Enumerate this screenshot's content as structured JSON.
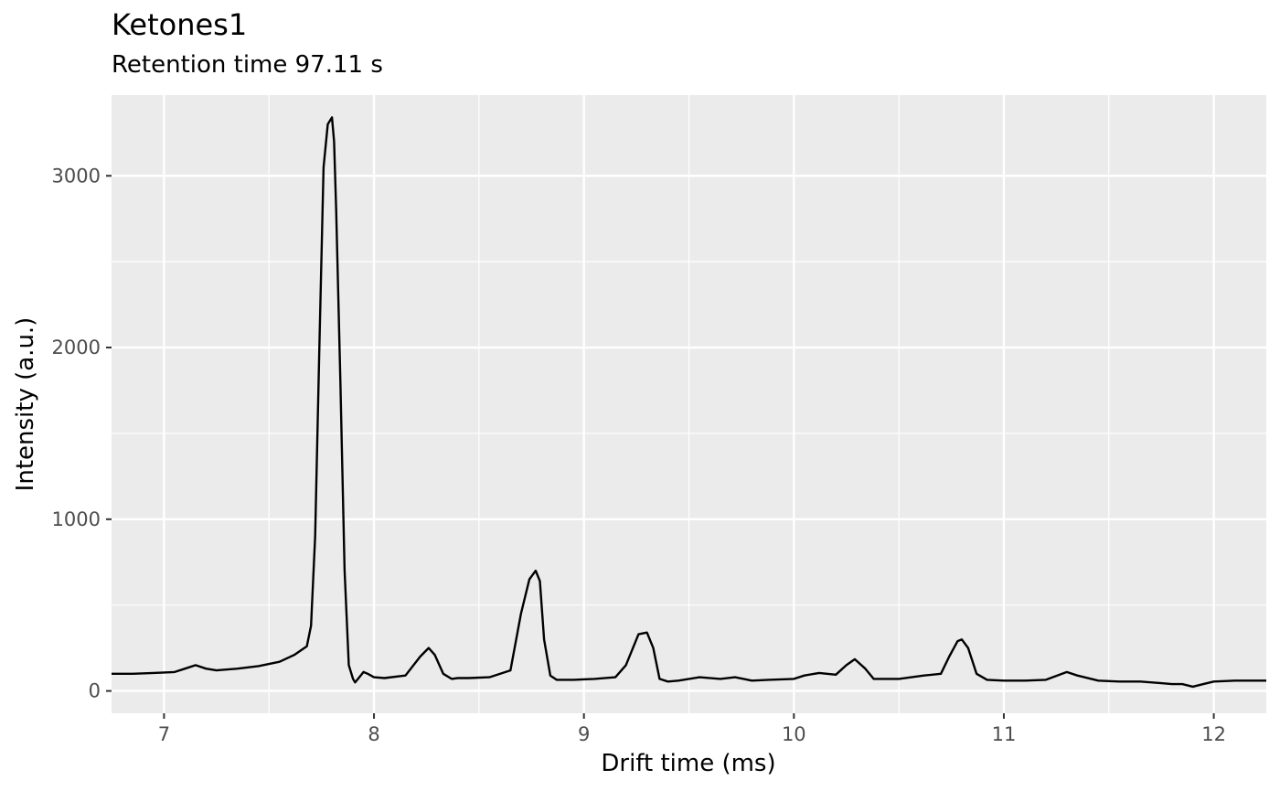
{
  "chart_data": {
    "type": "line",
    "title": "Ketones1",
    "subtitle": "Retention time 97.11 s",
    "xlabel": "Drift time (ms)",
    "ylabel": "Intensity (a.u.)",
    "xlim": [
      6.75,
      12.25
    ],
    "ylim": [
      -130,
      3470
    ],
    "xticks": [
      7,
      8,
      9,
      10,
      11,
      12
    ],
    "yticks": [
      0,
      1000,
      2000,
      3000
    ],
    "grid": true,
    "line_color": "#000000",
    "panel_background": "#EBEBEB",
    "series": [
      {
        "x": [
          6.75,
          6.85,
          6.95,
          7.05,
          7.1,
          7.15,
          7.2,
          7.25,
          7.35,
          7.45,
          7.55,
          7.62,
          7.68,
          7.7,
          7.72,
          7.74,
          7.76,
          7.78,
          7.8,
          7.81,
          7.82,
          7.84,
          7.86,
          7.88,
          7.9,
          7.91,
          7.93,
          7.95,
          7.97,
          8.0,
          8.05,
          8.15,
          8.22,
          8.26,
          8.29,
          8.33,
          8.37,
          8.4,
          8.45,
          8.55,
          8.65,
          8.7,
          8.74,
          8.77,
          8.79,
          8.81,
          8.84,
          8.87,
          8.9,
          8.95,
          9.05,
          9.15,
          9.2,
          9.26,
          9.3,
          9.33,
          9.36,
          9.4,
          9.45,
          9.55,
          9.65,
          9.72,
          9.8,
          9.88,
          10.0,
          10.05,
          10.12,
          10.2,
          10.25,
          10.29,
          10.34,
          10.38,
          10.5,
          10.62,
          10.7,
          10.74,
          10.78,
          10.8,
          10.83,
          10.87,
          10.92,
          11.0,
          11.1,
          11.2,
          11.3,
          11.35,
          11.45,
          11.55,
          11.65,
          11.75,
          11.8,
          11.85,
          11.9,
          11.95,
          12.0,
          12.1,
          12.25
        ],
        "y": [
          100,
          100,
          105,
          110,
          130,
          150,
          130,
          120,
          130,
          145,
          170,
          210,
          260,
          380,
          900,
          2000,
          3050,
          3300,
          3340,
          3200,
          2800,
          1800,
          700,
          150,
          70,
          50,
          80,
          110,
          100,
          80,
          75,
          90,
          200,
          250,
          210,
          100,
          70,
          75,
          75,
          80,
          120,
          450,
          650,
          700,
          640,
          300,
          90,
          65,
          65,
          65,
          70,
          80,
          150,
          330,
          340,
          250,
          70,
          55,
          60,
          80,
          70,
          80,
          60,
          65,
          70,
          90,
          105,
          95,
          150,
          185,
          130,
          70,
          70,
          90,
          100,
          200,
          290,
          300,
          250,
          100,
          65,
          60,
          60,
          65,
          110,
          90,
          60,
          55,
          55,
          45,
          40,
          40,
          25,
          40,
          55,
          60,
          60
        ]
      }
    ]
  }
}
